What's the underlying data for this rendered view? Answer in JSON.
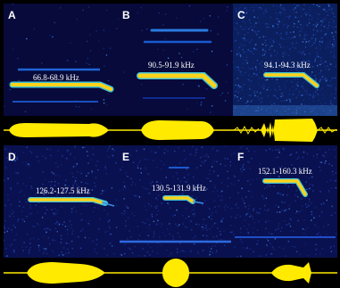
{
  "panels": [
    {
      "id": "A",
      "label": "A",
      "freq": "66.8-68.9 kHz",
      "bg": "#070a3a",
      "noise": 0.05
    },
    {
      "id": "B",
      "label": "B",
      "freq": "90.5-91.9 kHz",
      "bg": "#070a3a",
      "noise": 0.05
    },
    {
      "id": "C",
      "label": "C",
      "freq": "94.1-94.3 kHz",
      "bg": "#0b1f5e",
      "noise": 0.9
    },
    {
      "id": "D",
      "label": "D",
      "freq": "126.2-127.5 kHz",
      "bg": "#0a1150",
      "noise": 0.35
    },
    {
      "id": "E",
      "label": "E",
      "freq": "130.5-131.9 kHz",
      "bg": "#0a1150",
      "noise": 0.35
    },
    {
      "id": "F",
      "label": "F",
      "freq": "152.1-160.3 kHz",
      "bg": "#0a1150",
      "noise": 0.35
    }
  ],
  "colors": {
    "background": "#000000",
    "spectrogram_dark": "#070a3a",
    "call_core": "#ffd21a",
    "call_edge": "#3fc3d7",
    "waveform": "#ffea00",
    "label": "#ffffff"
  }
}
